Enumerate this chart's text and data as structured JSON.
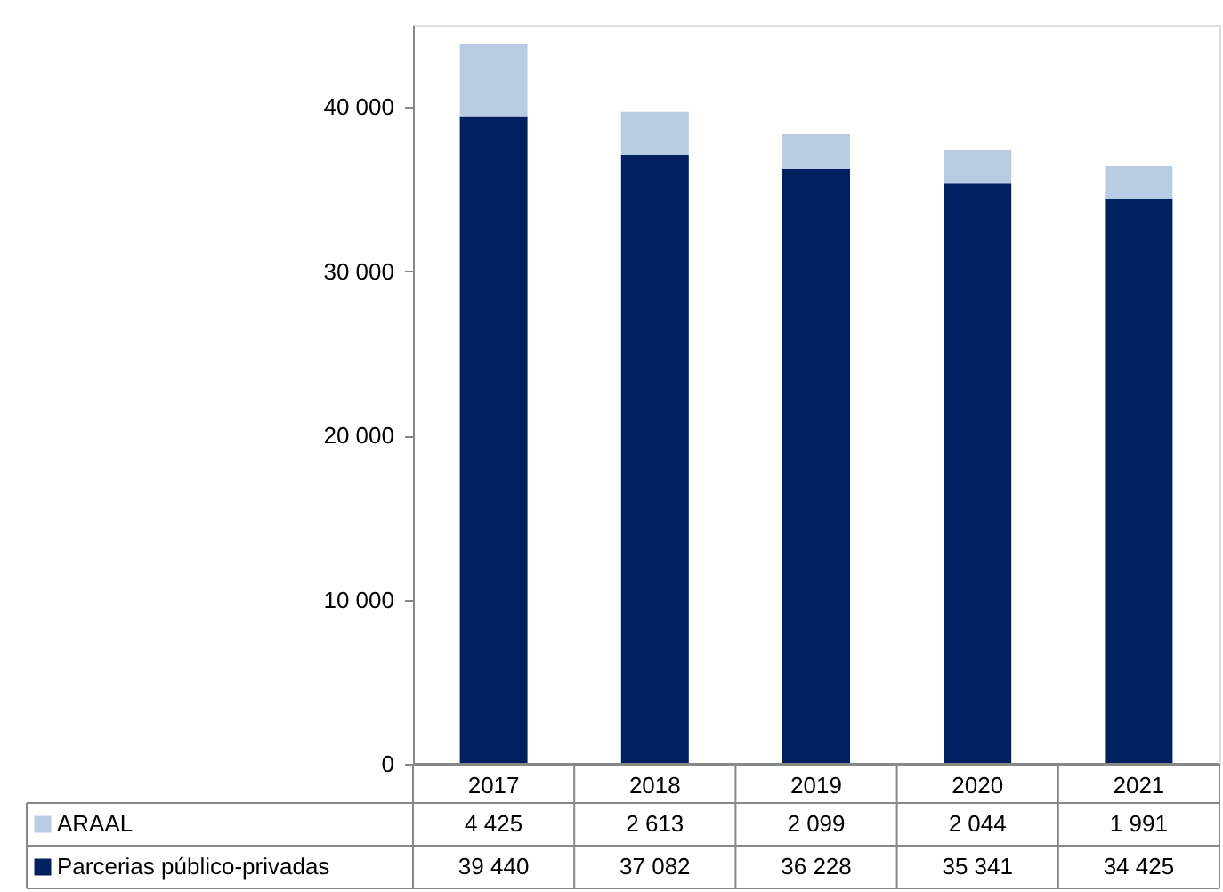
{
  "chart_data": {
    "type": "bar",
    "stacked": true,
    "categories": [
      "2017",
      "2018",
      "2019",
      "2020",
      "2021"
    ],
    "series": [
      {
        "name": "Parcerias público-privadas",
        "color": "#002060",
        "values": [
          39440,
          37082,
          36228,
          35341,
          34425
        ]
      },
      {
        "name": "ARAAL",
        "color": "#b8cce4",
        "values": [
          4425,
          2613,
          2099,
          2044,
          1991
        ]
      }
    ],
    "ylim": [
      0,
      45000
    ],
    "yticks": [
      0,
      {
        "value": 10000,
        "label": "10 000"
      },
      {
        "value": 20000,
        "label": "20 000"
      },
      {
        "value": 30000,
        "label": "30 000"
      },
      {
        "value": 40000,
        "label": "40 000"
      }
    ],
    "data_labels": true,
    "legend": "bottom",
    "grid": false
  }
}
